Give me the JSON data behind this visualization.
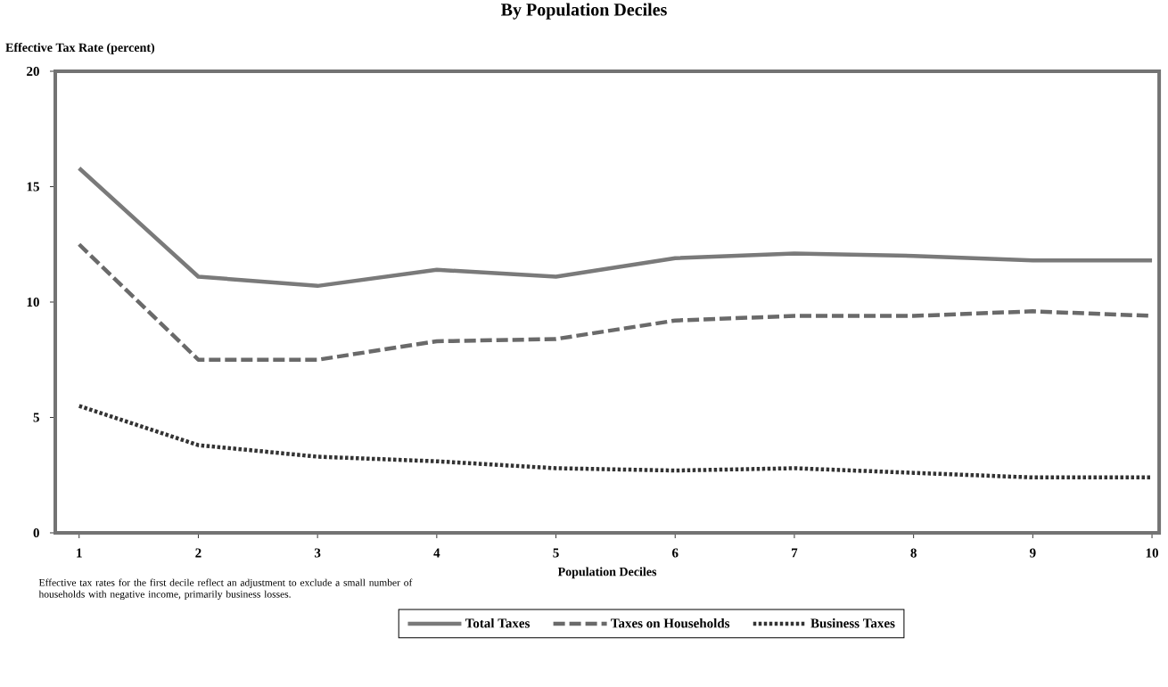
{
  "chart_data": {
    "type": "line",
    "subtitle": "By Population Deciles",
    "xlabel": "Population Deciles",
    "ylabel": "Effective Tax Rate (percent)",
    "x": [
      1,
      2,
      3,
      4,
      5,
      6,
      7,
      8,
      9,
      10
    ],
    "series": [
      {
        "name": "Total Taxes",
        "color": "#7a7a7a",
        "line_style": "solid",
        "values": [
          15.8,
          11.1,
          10.7,
          11.4,
          11.1,
          11.9,
          12.1,
          12.0,
          11.8,
          11.8
        ]
      },
      {
        "name": "Taxes on Households",
        "color": "#6a6a6a",
        "line_style": "dashed",
        "values": [
          12.5,
          7.5,
          7.5,
          8.3,
          8.4,
          9.2,
          9.4,
          9.4,
          9.6,
          9.4
        ]
      },
      {
        "name": "Business Taxes",
        "color": "#333333",
        "line_style": "dotted",
        "values": [
          5.5,
          3.8,
          3.3,
          3.1,
          2.8,
          2.7,
          2.8,
          2.6,
          2.4,
          2.4
        ]
      }
    ],
    "xlim": [
      0.8,
      10.06
    ],
    "xticks": [
      1,
      2,
      3,
      4,
      5,
      6,
      7,
      8,
      9,
      10
    ],
    "ylim": [
      0,
      20
    ],
    "yticks": [
      0,
      5,
      10,
      15,
      20
    ],
    "legend": "bottom",
    "annotations": [
      "Effective tax rates for the first decile reflect an adjustment to exclude a small number of households with negative income, primarily business losses."
    ]
  }
}
